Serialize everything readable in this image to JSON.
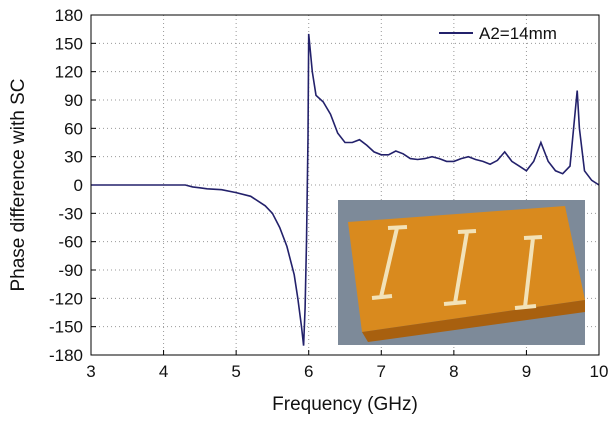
{
  "chart_data": {
    "type": "line",
    "x_label": "Frequency (GHz)",
    "y_label": "Phase difference with SC",
    "x": [
      3,
      3.5,
      4,
      4.3,
      4.4,
      4.5,
      4.6,
      4.8,
      5.0,
      5.2,
      5.4,
      5.5,
      5.6,
      5.7,
      5.8,
      5.85,
      5.9,
      5.93,
      5.95,
      5.97,
      5.99,
      6.0,
      6.05,
      6.1,
      6.2,
      6.3,
      6.4,
      6.5,
      6.6,
      6.7,
      6.8,
      6.9,
      7.0,
      7.1,
      7.2,
      7.3,
      7.4,
      7.5,
      7.6,
      7.7,
      7.8,
      7.9,
      8.0,
      8.1,
      8.2,
      8.3,
      8.4,
      8.5,
      8.6,
      8.7,
      8.8,
      8.9,
      9.0,
      9.1,
      9.2,
      9.3,
      9.4,
      9.5,
      9.6,
      9.65,
      9.7,
      9.73,
      9.8,
      9.9,
      10.0
    ],
    "series": [
      {
        "name": "A2=14mm",
        "color": "#23216b",
        "values": [
          0,
          0,
          0,
          0,
          -2,
          -3,
          -4,
          -5,
          -8,
          -12,
          -22,
          -30,
          -45,
          -65,
          -95,
          -120,
          -150,
          -170,
          -130,
          -60,
          50,
          160,
          120,
          95,
          88,
          75,
          55,
          45,
          45,
          48,
          42,
          35,
          32,
          32,
          36,
          33,
          28,
          27,
          28,
          30,
          28,
          25,
          25,
          28,
          30,
          27,
          25,
          22,
          26,
          35,
          25,
          20,
          15,
          25,
          45,
          25,
          15,
          12,
          20,
          60,
          100,
          60,
          15,
          5,
          0
        ]
      }
    ],
    "xlim": [
      3,
      10
    ],
    "ylim": [
      -180,
      180
    ],
    "xticks": [
      3,
      4,
      5,
      6,
      7,
      8,
      9,
      10
    ],
    "yticks": [
      -180,
      -150,
      -120,
      -90,
      -60,
      -30,
      0,
      30,
      60,
      90,
      120,
      150,
      180
    ],
    "grid": true,
    "legend": "upper right"
  }
}
